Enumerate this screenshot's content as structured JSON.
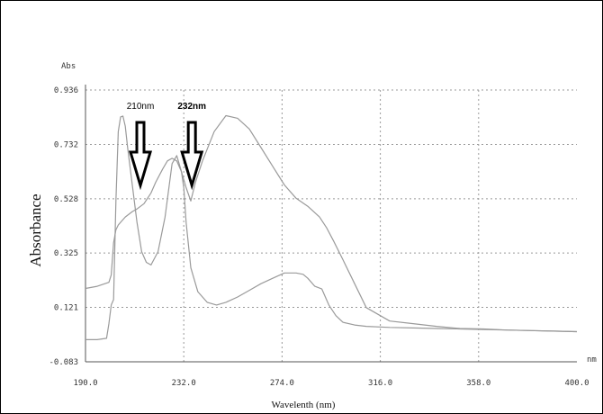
{
  "chart_data": {
    "type": "line",
    "y_axis_unit": "Abs",
    "x_axis_unit": "nm",
    "ylabel": "Absorbance",
    "xlabel": "Wavelenth (nm)",
    "xlim": [
      190.0,
      400.0
    ],
    "ylim": [
      -0.083,
      0.936
    ],
    "x_ticks": [
      "190.0",
      "232.0",
      "274.0",
      "316.0",
      "358.0",
      "400.0"
    ],
    "y_ticks": [
      "0.936",
      "0.732",
      "0.528",
      "0.325",
      "0.121",
      "-0.083"
    ],
    "grid": true,
    "annotations": [
      {
        "label": "210nm",
        "x": 210
      },
      {
        "label": "232nm",
        "x": 232
      }
    ],
    "series": [
      {
        "x": [
          190,
          195,
          200,
          201,
          202,
          203,
          204,
          205,
          207,
          210,
          212,
          215,
          218,
          220,
          223,
          225,
          227,
          229,
          231,
          233,
          235,
          237,
          240,
          245,
          250,
          255,
          260,
          265,
          270,
          275,
          280,
          285,
          290,
          293,
          296,
          300,
          305,
          310,
          320,
          330,
          340,
          350,
          360,
          370,
          380,
          390,
          400
        ],
        "y": [
          0.192,
          0.2,
          0.215,
          0.243,
          0.363,
          0.412,
          0.43,
          0.44,
          0.46,
          0.48,
          0.49,
          0.51,
          0.55,
          0.59,
          0.64,
          0.67,
          0.68,
          0.67,
          0.63,
          0.57,
          0.52,
          0.59,
          0.67,
          0.78,
          0.84,
          0.83,
          0.79,
          0.72,
          0.65,
          0.58,
          0.53,
          0.5,
          0.46,
          0.42,
          0.37,
          0.3,
          0.21,
          0.12,
          0.07,
          0.06,
          0.05,
          0.042,
          0.04,
          0.036,
          0.034,
          0.032,
          0.03
        ]
      },
      {
        "x": [
          190,
          195,
          199,
          200,
          201,
          202,
          203,
          204,
          205,
          206,
          207,
          208,
          209,
          210,
          212,
          214,
          216,
          218,
          221,
          224,
          227,
          229,
          231,
          232,
          233,
          235,
          238,
          242,
          246,
          250,
          255,
          260,
          265,
          270,
          275,
          280,
          283,
          285,
          288,
          291,
          294,
          297,
          300,
          305,
          310,
          320,
          330,
          340,
          350,
          360,
          370,
          380,
          390,
          400
        ],
        "y": [
          0.0,
          0.0,
          0.005,
          0.06,
          0.13,
          0.15,
          0.52,
          0.78,
          0.835,
          0.838,
          0.8,
          0.72,
          0.65,
          0.58,
          0.44,
          0.33,
          0.29,
          0.28,
          0.33,
          0.46,
          0.66,
          0.69,
          0.63,
          0.57,
          0.44,
          0.27,
          0.18,
          0.14,
          0.13,
          0.14,
          0.16,
          0.185,
          0.21,
          0.23,
          0.25,
          0.25,
          0.245,
          0.23,
          0.2,
          0.19,
          0.13,
          0.09,
          0.065,
          0.055,
          0.05,
          0.046,
          0.044,
          0.042,
          0.04,
          0.038,
          0.036,
          0.034,
          0.032,
          0.03
        ]
      }
    ]
  }
}
